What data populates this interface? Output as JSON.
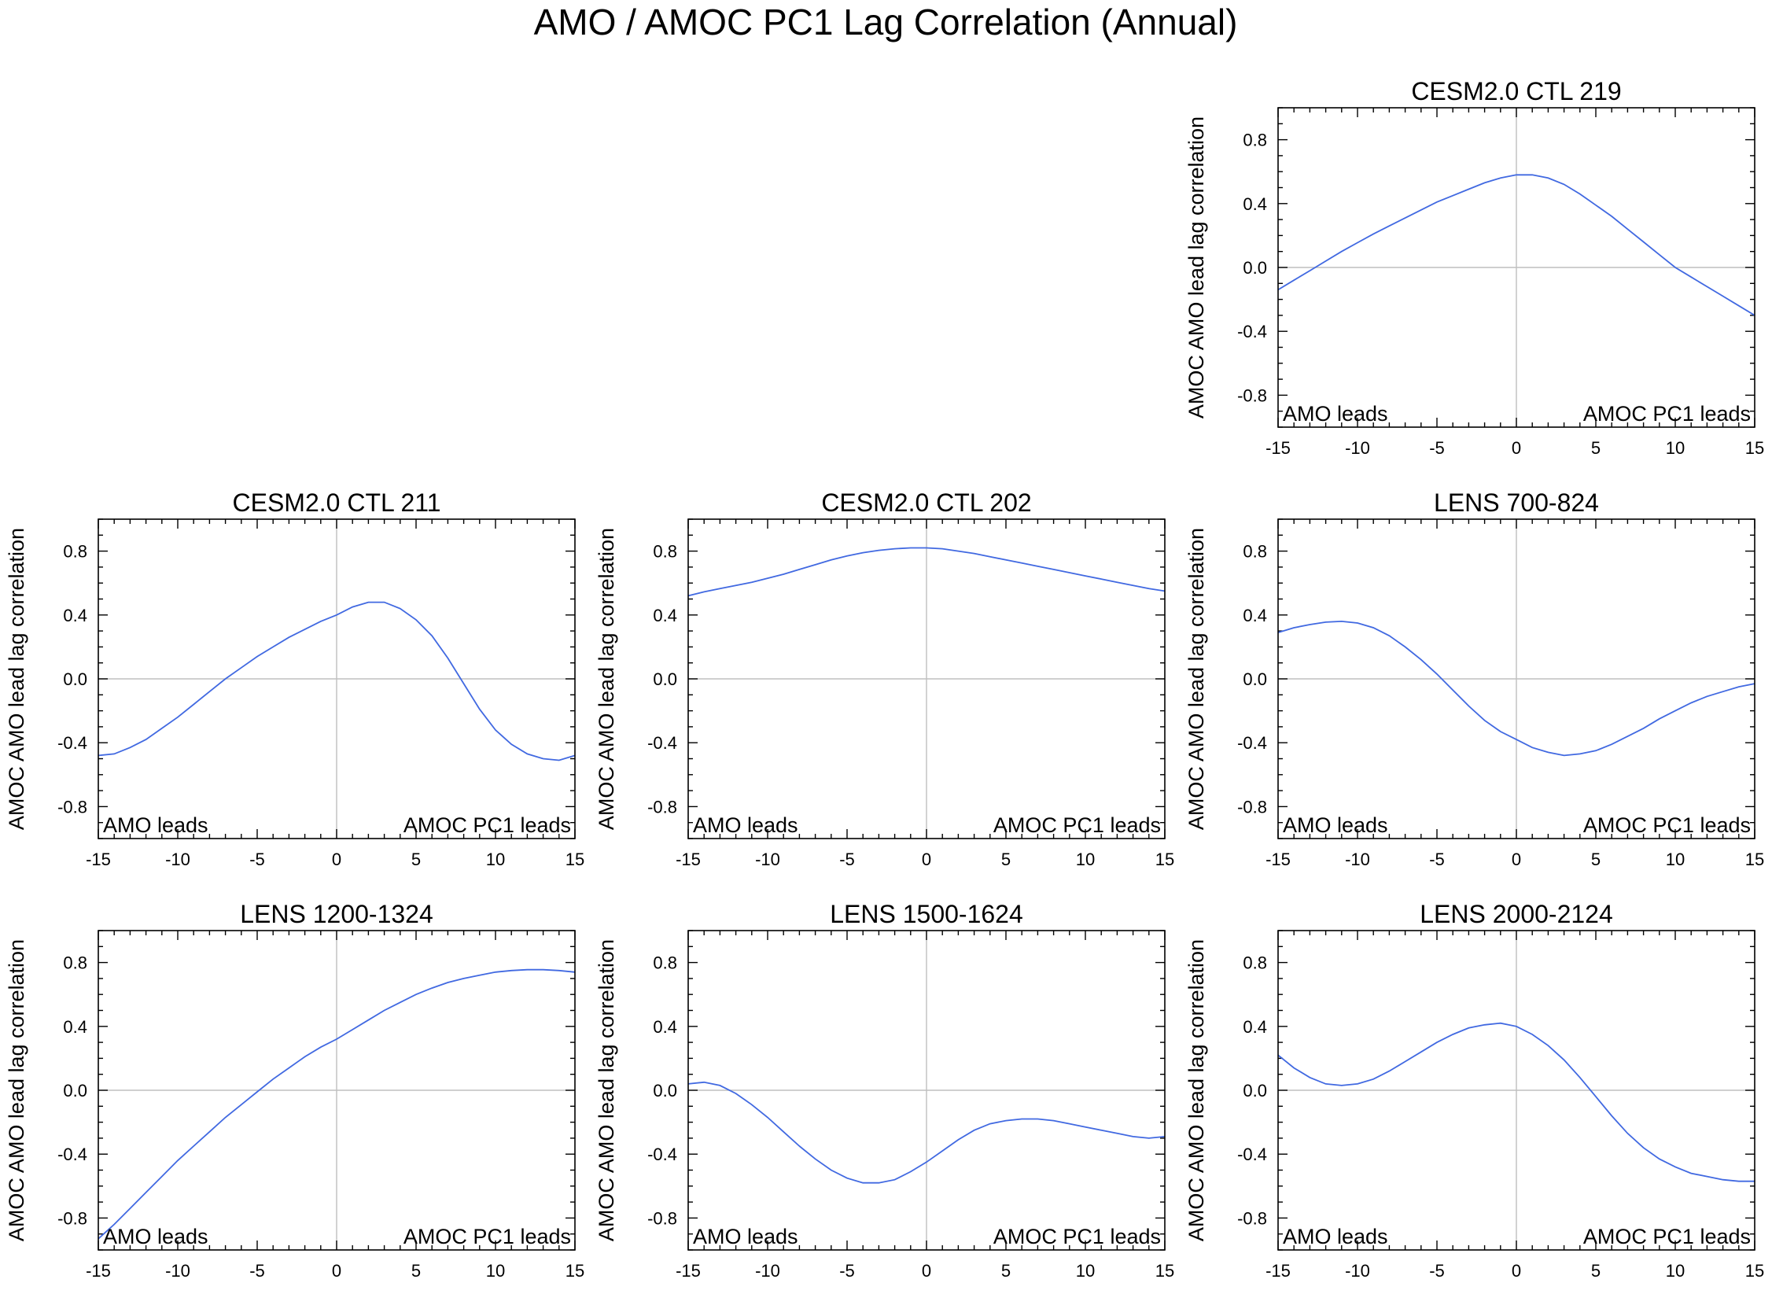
{
  "figure": {
    "title": "AMO / AMOC PC1 Lag Correlation (Annual)",
    "series_color": "#4169e1"
  },
  "chart_data": [
    {
      "type": "line",
      "title": "CESM2.0 CTL 219",
      "xlabel": "",
      "ylabel": "AMOC AMO lead lag correlation",
      "xlim": [
        -15,
        15
      ],
      "ylim": [
        -1,
        1
      ],
      "xticks": [
        "-15",
        "-10",
        "-5",
        "0",
        "5",
        "10",
        "15"
      ],
      "yticks": [
        "0.8",
        "0.4",
        "0.0",
        "-0.4",
        "-0.8"
      ],
      "left_annotation": "AMO leads",
      "right_annotation": "AMOC PC1 leads",
      "x": [
        -15,
        -14,
        -13,
        -12,
        -11,
        -10,
        -9,
        -8,
        -7,
        -6,
        -5,
        -4,
        -3,
        -2,
        -1,
        0,
        1,
        2,
        3,
        4,
        5,
        6,
        7,
        8,
        9,
        10,
        11,
        12,
        13,
        14,
        15
      ],
      "values": [
        -0.14,
        -0.08,
        -0.02,
        0.04,
        0.1,
        0.155,
        0.21,
        0.26,
        0.31,
        0.36,
        0.41,
        0.45,
        0.49,
        0.53,
        0.56,
        0.58,
        0.58,
        0.56,
        0.52,
        0.46,
        0.39,
        0.32,
        0.24,
        0.16,
        0.08,
        0.0,
        -0.06,
        -0.12,
        -0.18,
        -0.24,
        -0.3
      ]
    },
    {
      "type": "line",
      "title": "CESM2.0 CTL 211",
      "xlabel": "",
      "ylabel": "AMOC AMO lead lag correlation",
      "xlim": [
        -15,
        15
      ],
      "ylim": [
        -1,
        1
      ],
      "xticks": [
        "-15",
        "-10",
        "-5",
        "0",
        "5",
        "10",
        "15"
      ],
      "yticks": [
        "0.8",
        "0.4",
        "0.0",
        "-0.4",
        "-0.8"
      ],
      "left_annotation": "AMO leads",
      "right_annotation": "AMOC PC1 leads",
      "x": [
        -15,
        -14,
        -13,
        -12,
        -11,
        -10,
        -9,
        -8,
        -7,
        -6,
        -5,
        -4,
        -3,
        -2,
        -1,
        0,
        1,
        2,
        3,
        4,
        5,
        6,
        7,
        8,
        9,
        10,
        11,
        12,
        13,
        14,
        15
      ],
      "values": [
        -0.48,
        -0.47,
        -0.43,
        -0.38,
        -0.31,
        -0.24,
        -0.16,
        -0.08,
        0.0,
        0.07,
        0.14,
        0.2,
        0.26,
        0.31,
        0.36,
        0.4,
        0.45,
        0.48,
        0.48,
        0.44,
        0.37,
        0.27,
        0.13,
        -0.03,
        -0.19,
        -0.32,
        -0.41,
        -0.47,
        -0.5,
        -0.51,
        -0.48
      ]
    },
    {
      "type": "line",
      "title": "CESM2.0 CTL 202",
      "xlabel": "",
      "ylabel": "AMOC AMO lead lag correlation",
      "xlim": [
        -15,
        15
      ],
      "ylim": [
        -1,
        1
      ],
      "xticks": [
        "-15",
        "-10",
        "-5",
        "0",
        "5",
        "10",
        "15"
      ],
      "yticks": [
        "0.8",
        "0.4",
        "0.0",
        "-0.4",
        "-0.8"
      ],
      "left_annotation": "AMO leads",
      "right_annotation": "AMOC PC1 leads",
      "x": [
        -15,
        -14,
        -13,
        -12,
        -11,
        -10,
        -9,
        -8,
        -7,
        -6,
        -5,
        -4,
        -3,
        -2,
        -1,
        0,
        1,
        2,
        3,
        4,
        5,
        6,
        7,
        8,
        9,
        10,
        11,
        12,
        13,
        14,
        15
      ],
      "values": [
        0.52,
        0.545,
        0.565,
        0.585,
        0.605,
        0.63,
        0.655,
        0.685,
        0.715,
        0.745,
        0.77,
        0.79,
        0.805,
        0.815,
        0.82,
        0.82,
        0.815,
        0.8,
        0.785,
        0.765,
        0.745,
        0.725,
        0.705,
        0.685,
        0.665,
        0.645,
        0.625,
        0.605,
        0.585,
        0.565,
        0.55
      ]
    },
    {
      "type": "line",
      "title": "LENS 700-824",
      "xlabel": "",
      "ylabel": "AMOC AMO lead lag correlation",
      "xlim": [
        -15,
        15
      ],
      "ylim": [
        -1,
        1
      ],
      "xticks": [
        "-15",
        "-10",
        "-5",
        "0",
        "5",
        "10",
        "15"
      ],
      "yticks": [
        "0.8",
        "0.4",
        "0.0",
        "-0.4",
        "-0.8"
      ],
      "left_annotation": "AMO leads",
      "right_annotation": "AMOC PC1 leads",
      "x": [
        -15,
        -14,
        -13,
        -12,
        -11,
        -10,
        -9,
        -8,
        -7,
        -6,
        -5,
        -4,
        -3,
        -2,
        -1,
        0,
        1,
        2,
        3,
        4,
        5,
        6,
        7,
        8,
        9,
        10,
        11,
        12,
        13,
        14,
        15
      ],
      "values": [
        0.29,
        0.32,
        0.34,
        0.355,
        0.36,
        0.35,
        0.32,
        0.27,
        0.2,
        0.12,
        0.03,
        -0.07,
        -0.17,
        -0.26,
        -0.33,
        -0.38,
        -0.43,
        -0.46,
        -0.48,
        -0.47,
        -0.45,
        -0.41,
        -0.36,
        -0.31,
        -0.25,
        -0.2,
        -0.15,
        -0.11,
        -0.08,
        -0.05,
        -0.03
      ]
    },
    {
      "type": "line",
      "title": "LENS 1200-1324",
      "xlabel": "",
      "ylabel": "AMOC AMO lead lag correlation",
      "xlim": [
        -15,
        15
      ],
      "ylim": [
        -1,
        1
      ],
      "xticks": [
        "-15",
        "-10",
        "-5",
        "0",
        "5",
        "10",
        "15"
      ],
      "yticks": [
        "0.8",
        "0.4",
        "0.0",
        "-0.4",
        "-0.8"
      ],
      "left_annotation": "AMO leads",
      "right_annotation": "AMOC PC1 leads",
      "x": [
        -15,
        -14,
        -13,
        -12,
        -11,
        -10,
        -9,
        -8,
        -7,
        -6,
        -5,
        -4,
        -3,
        -2,
        -1,
        0,
        1,
        2,
        3,
        4,
        5,
        6,
        7,
        8,
        9,
        10,
        11,
        12,
        13,
        14,
        15
      ],
      "values": [
        -0.93,
        -0.84,
        -0.74,
        -0.64,
        -0.54,
        -0.44,
        -0.35,
        -0.26,
        -0.17,
        -0.09,
        -0.01,
        0.07,
        0.14,
        0.21,
        0.27,
        0.32,
        0.38,
        0.44,
        0.5,
        0.55,
        0.6,
        0.64,
        0.675,
        0.7,
        0.72,
        0.74,
        0.75,
        0.755,
        0.755,
        0.75,
        0.74
      ]
    },
    {
      "type": "line",
      "title": "LENS 1500-1624",
      "xlabel": "",
      "ylabel": "AMOC AMO lead lag correlation",
      "xlim": [
        -15,
        15
      ],
      "ylim": [
        -1,
        1
      ],
      "xticks": [
        "-15",
        "-10",
        "-5",
        "0",
        "5",
        "10",
        "15"
      ],
      "yticks": [
        "0.8",
        "0.4",
        "0.0",
        "-0.4",
        "-0.8"
      ],
      "left_annotation": "AMO leads",
      "right_annotation": "AMOC PC1 leads",
      "x": [
        -15,
        -14,
        -13,
        -12,
        -11,
        -10,
        -9,
        -8,
        -7,
        -6,
        -5,
        -4,
        -3,
        -2,
        -1,
        0,
        1,
        2,
        3,
        4,
        5,
        6,
        7,
        8,
        9,
        10,
        11,
        12,
        13,
        14,
        15
      ],
      "values": [
        0.04,
        0.05,
        0.03,
        -0.02,
        -0.09,
        -0.17,
        -0.26,
        -0.35,
        -0.43,
        -0.5,
        -0.55,
        -0.58,
        -0.58,
        -0.56,
        -0.51,
        -0.45,
        -0.38,
        -0.31,
        -0.25,
        -0.21,
        -0.19,
        -0.18,
        -0.18,
        -0.19,
        -0.21,
        -0.23,
        -0.25,
        -0.27,
        -0.29,
        -0.3,
        -0.29
      ]
    },
    {
      "type": "line",
      "title": "LENS 2000-2124",
      "xlabel": "",
      "ylabel": "AMOC AMO lead lag correlation",
      "xlim": [
        -15,
        15
      ],
      "ylim": [
        -1,
        1
      ],
      "xticks": [
        "-15",
        "-10",
        "-5",
        "0",
        "5",
        "10",
        "15"
      ],
      "yticks": [
        "0.8",
        "0.4",
        "0.0",
        "-0.4",
        "-0.8"
      ],
      "left_annotation": "AMO leads",
      "right_annotation": "AMOC PC1 leads",
      "x": [
        -15,
        -14,
        -13,
        -12,
        -11,
        -10,
        -9,
        -8,
        -7,
        -6,
        -5,
        -4,
        -3,
        -2,
        -1,
        0,
        1,
        2,
        3,
        4,
        5,
        6,
        7,
        8,
        9,
        10,
        11,
        12,
        13,
        14,
        15
      ],
      "values": [
        0.22,
        0.14,
        0.08,
        0.04,
        0.03,
        0.04,
        0.07,
        0.12,
        0.18,
        0.24,
        0.3,
        0.35,
        0.39,
        0.41,
        0.42,
        0.4,
        0.35,
        0.28,
        0.19,
        0.08,
        -0.04,
        -0.16,
        -0.27,
        -0.36,
        -0.43,
        -0.48,
        -0.52,
        -0.54,
        -0.56,
        -0.57,
        -0.57
      ]
    }
  ]
}
